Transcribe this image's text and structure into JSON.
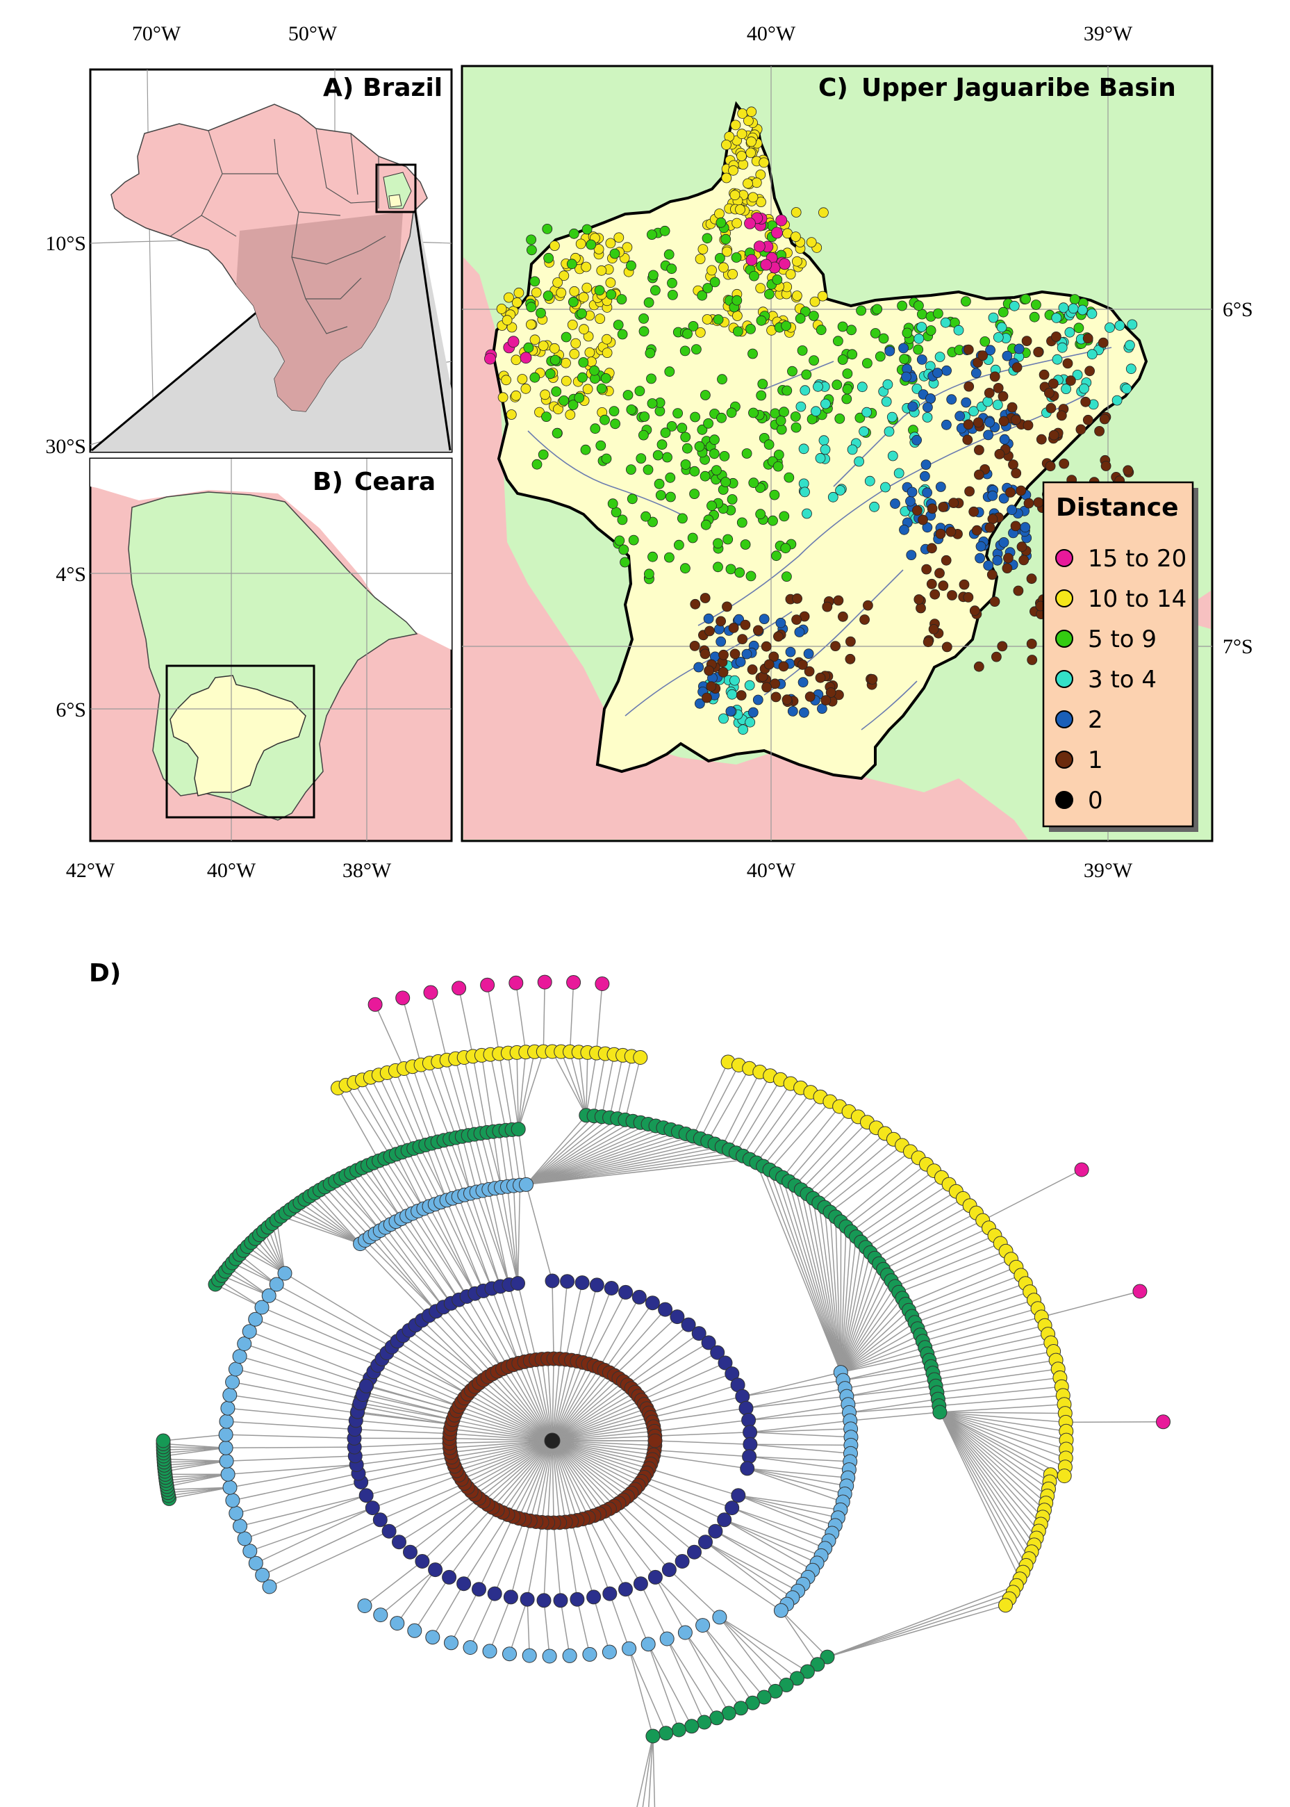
{
  "panels": {
    "a": {
      "label": "A)",
      "title": "Brazil",
      "top_ticks": [
        "70°W",
        "50°W"
      ],
      "left_ticks": [
        "10°S",
        "30°S"
      ]
    },
    "b": {
      "label": "B)",
      "title": "Ceara",
      "bottom_ticks": [
        "42°W",
        "40°W",
        "38°W"
      ],
      "left_ticks": [
        "4°S",
        "6°S"
      ]
    },
    "c": {
      "label": "C)",
      "title": "Upper Jaguaribe Basin",
      "top_ticks": [
        "40°W",
        "39°W"
      ],
      "bottom_ticks": [
        "40°W",
        "39°W"
      ],
      "right_ticks": [
        "6°S",
        "7°S"
      ]
    },
    "d": {
      "label": "D)"
    }
  },
  "legend": {
    "title": "Distance",
    "items": [
      {
        "label": "15 to 20",
        "color": "#e8199a"
      },
      {
        "label": "10 to 14",
        "color": "#f5e61a"
      },
      {
        "label": "5 to 9",
        "color": "#33cc11"
      },
      {
        "label": "3 to 4",
        "color": "#33e0c8"
      },
      {
        "label": "2",
        "color": "#1a5fb8"
      },
      {
        "label": "1",
        "color": "#6b2a0c"
      },
      {
        "label": "0",
        "color": "#000000"
      }
    ]
  },
  "colors": {
    "outside_region": "#f7c1c1",
    "ceara": "#cff5c0",
    "basin": "#fefec9",
    "ocean": "#ffffff",
    "inset_shadow": "#d9d9d9",
    "legend_bg": "#fcd2b0",
    "tree_dist_15_20": "#e8199a",
    "tree_dist_10_14": "#f5e61a",
    "tree_dist_5_9": "#169955",
    "tree_dist_3_4": "#6cb4e4",
    "tree_dist_2": "#2b2f8c",
    "tree_dist_1": "#7a2a12",
    "tree_root": "#222222"
  }
}
